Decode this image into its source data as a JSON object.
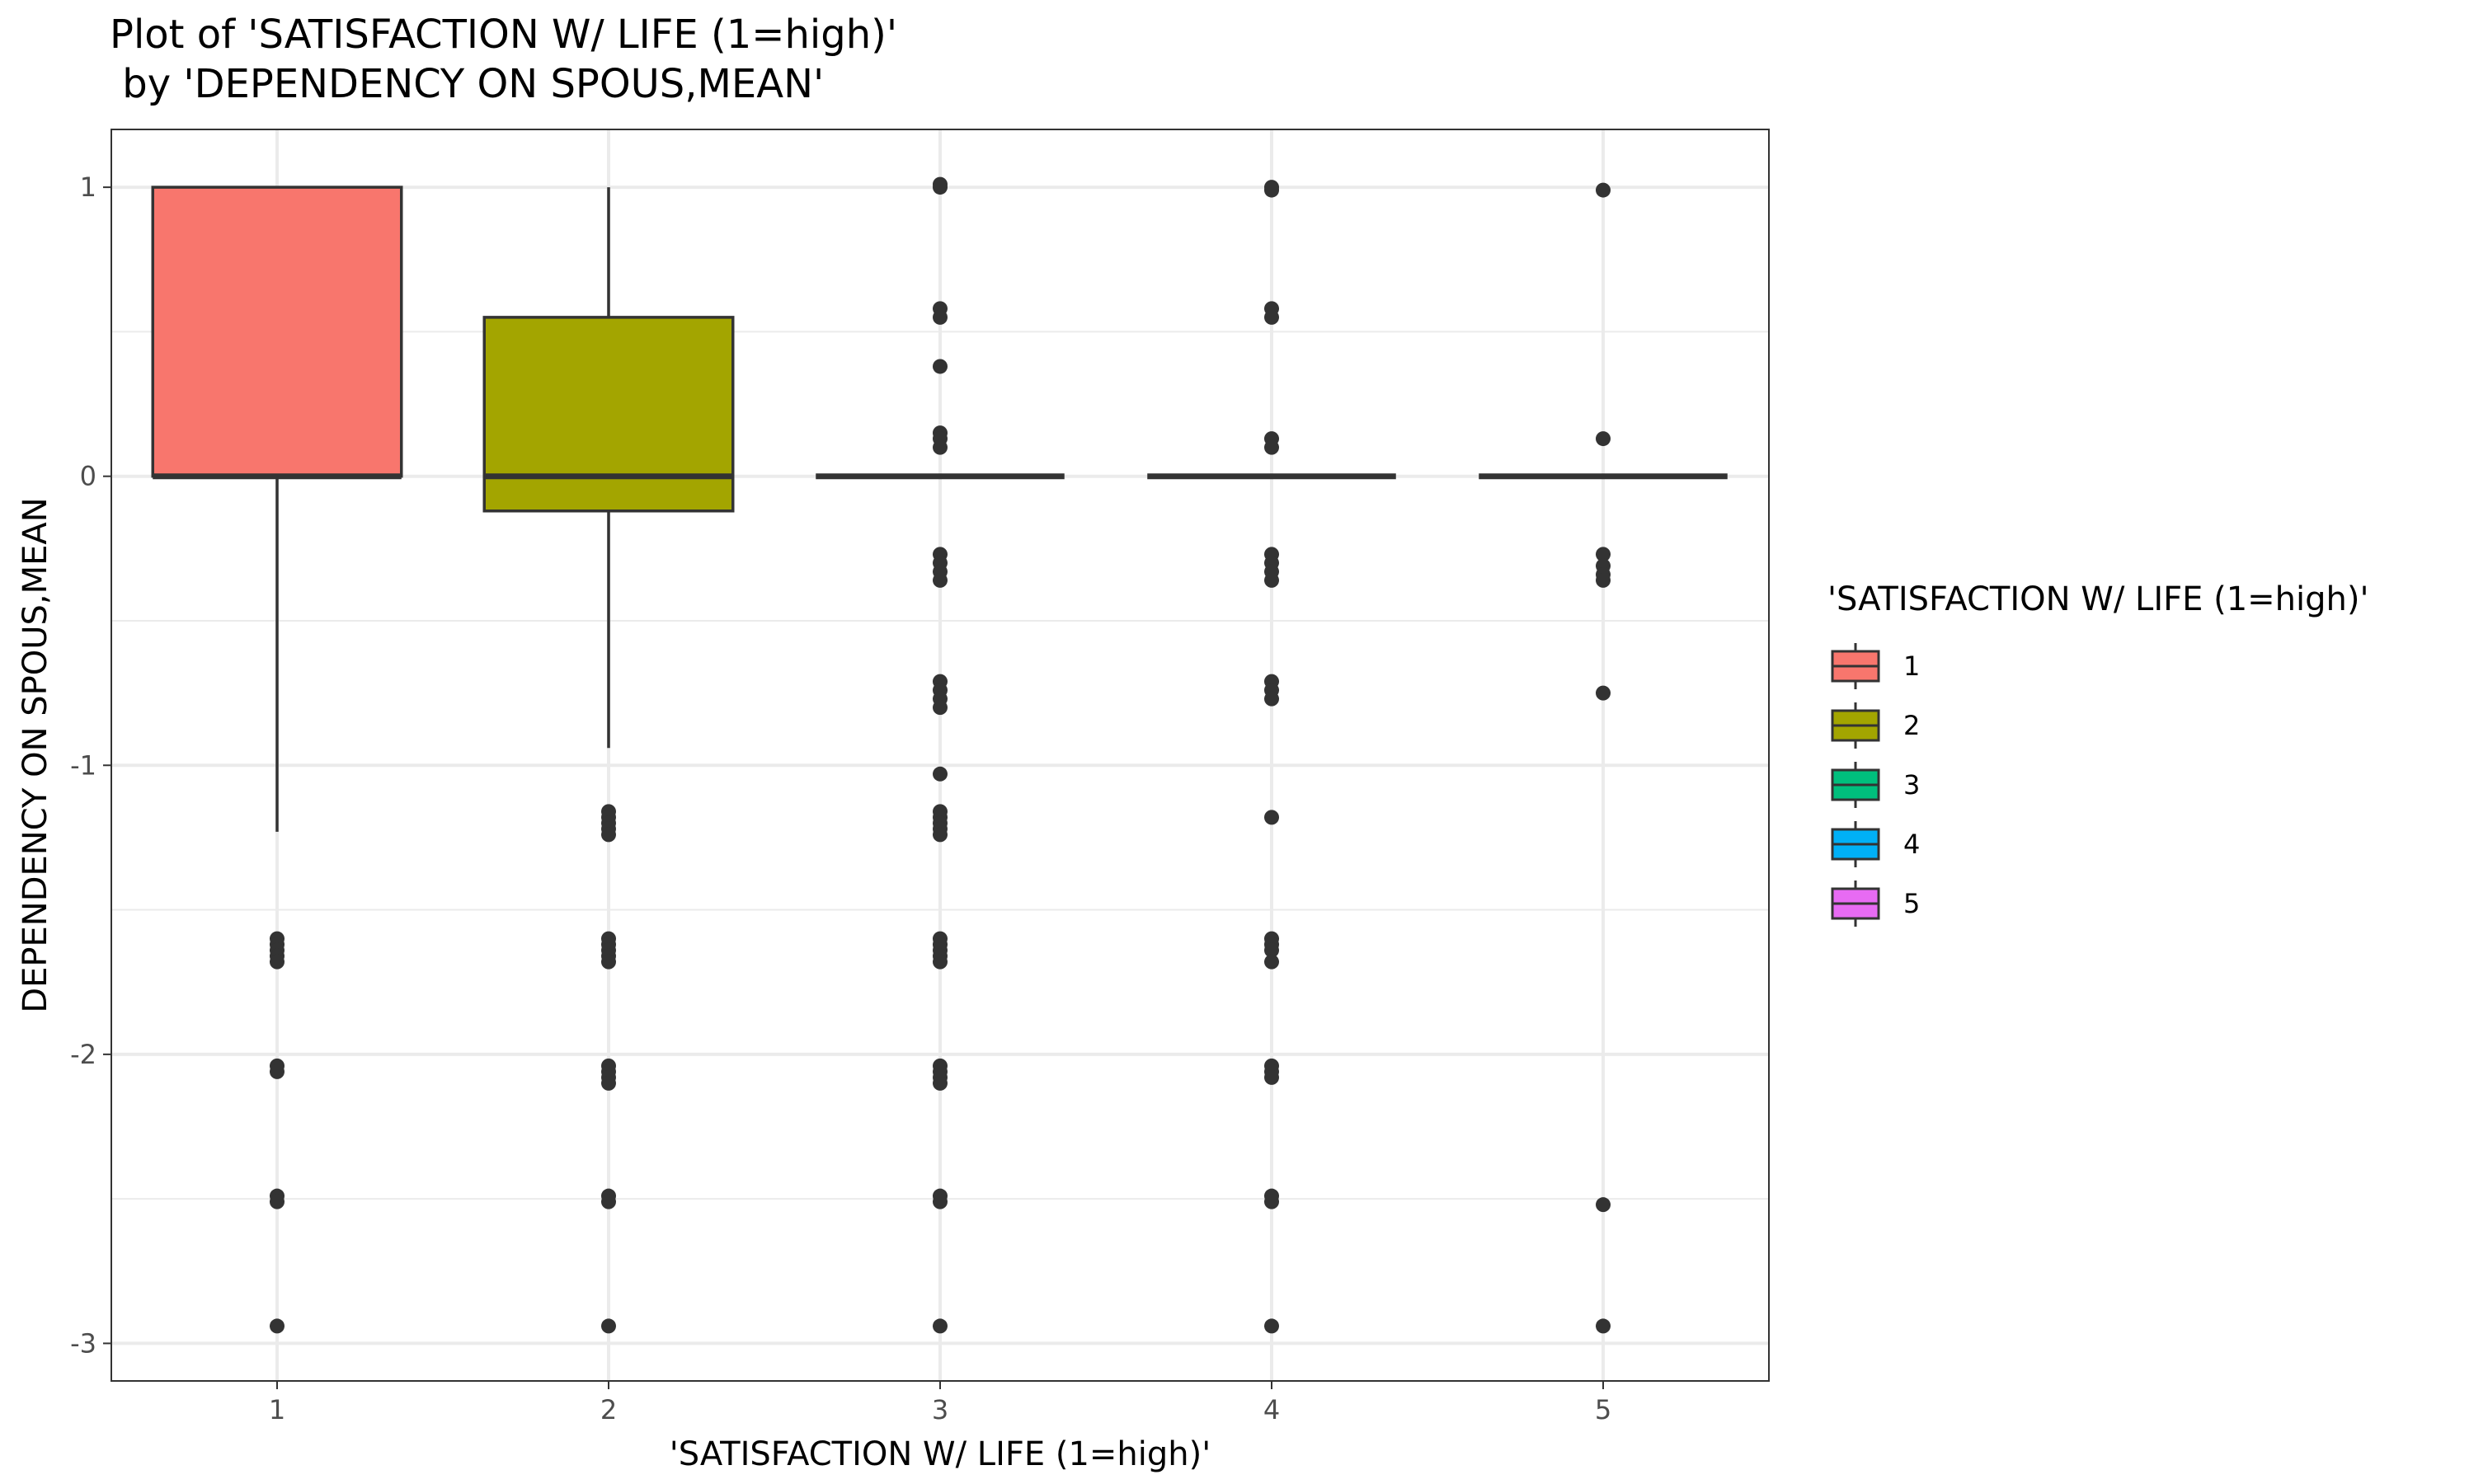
{
  "chart_data": {
    "type": "boxplot",
    "title": [
      "Plot of 'SATISFACTION W/ LIFE (1=high)'",
      " by 'DEPENDENCY ON SPOUS,MEAN'"
    ],
    "xlabel": "'SATISFACTION W/ LIFE (1=high)'",
    "ylabel": "DEPENDENCY ON SPOUS,MEAN",
    "categories": [
      "1",
      "2",
      "3",
      "4",
      "5"
    ],
    "ylim": [
      -3.13,
      1.2
    ],
    "y_ticks": [
      1,
      0,
      -1,
      -2,
      -3
    ],
    "y_tick_labels": [
      "1",
      "0",
      "-1",
      "-2",
      "-3"
    ],
    "grid": true,
    "legend": {
      "title": "'SATISFACTION W/ LIFE (1=high)'",
      "placement": "right",
      "entries": [
        "1",
        "2",
        "3",
        "4",
        "5"
      ]
    },
    "colors": [
      "#F8766D",
      "#A3A500",
      "#00BF7D",
      "#00B0F6",
      "#E76BF3"
    ],
    "boxes": [
      {
        "category": "1",
        "q1": 0,
        "median": 0,
        "q3": 1,
        "whisker_low": -1.23,
        "whisker_high": 1,
        "outliers": [
          -1.6,
          -1.62,
          -1.64,
          -1.66,
          -1.68,
          -2.04,
          -2.06,
          -2.49,
          -2.51,
          -2.94
        ]
      },
      {
        "category": "2",
        "q1": -0.12,
        "median": 0,
        "q3": 0.55,
        "whisker_low": -0.94,
        "whisker_high": 1,
        "outliers": [
          -1.16,
          -1.18,
          -1.2,
          -1.22,
          -1.24,
          -1.6,
          -1.62,
          -1.64,
          -1.66,
          -1.68,
          -2.04,
          -2.06,
          -2.08,
          -2.1,
          -2.49,
          -2.51,
          -2.94
        ]
      },
      {
        "category": "3",
        "q1": 0,
        "median": 0,
        "q3": 0,
        "whisker_low": 0,
        "whisker_high": 0,
        "outliers": [
          1.0,
          1.01,
          0.58,
          0.55,
          0.38,
          0.15,
          0.13,
          0.1,
          -0.27,
          -0.3,
          -0.33,
          -0.36,
          -0.71,
          -0.74,
          -0.77,
          -0.8,
          -1.03,
          -1.16,
          -1.18,
          -1.2,
          -1.22,
          -1.24,
          -1.6,
          -1.62,
          -1.64,
          -1.66,
          -1.68,
          -2.04,
          -2.06,
          -2.08,
          -2.1,
          -2.49,
          -2.51,
          -2.94
        ]
      },
      {
        "category": "4",
        "q1": 0,
        "median": 0,
        "q3": 0,
        "whisker_low": 0,
        "whisker_high": 0,
        "outliers": [
          0.99,
          1.0,
          0.58,
          0.55,
          0.13,
          0.1,
          -0.27,
          -0.3,
          -0.33,
          -0.36,
          -0.71,
          -0.74,
          -0.77,
          -1.18,
          -1.6,
          -1.62,
          -1.64,
          -1.68,
          -2.04,
          -2.06,
          -2.08,
          -2.49,
          -2.51,
          -2.94
        ]
      },
      {
        "category": "5",
        "q1": 0,
        "median": 0,
        "q3": 0,
        "whisker_low": 0,
        "whisker_high": 0,
        "outliers": [
          0.99,
          0.13,
          -0.27,
          -0.31,
          -0.34,
          -0.36,
          -0.75,
          -2.52,
          -2.94
        ]
      }
    ]
  }
}
